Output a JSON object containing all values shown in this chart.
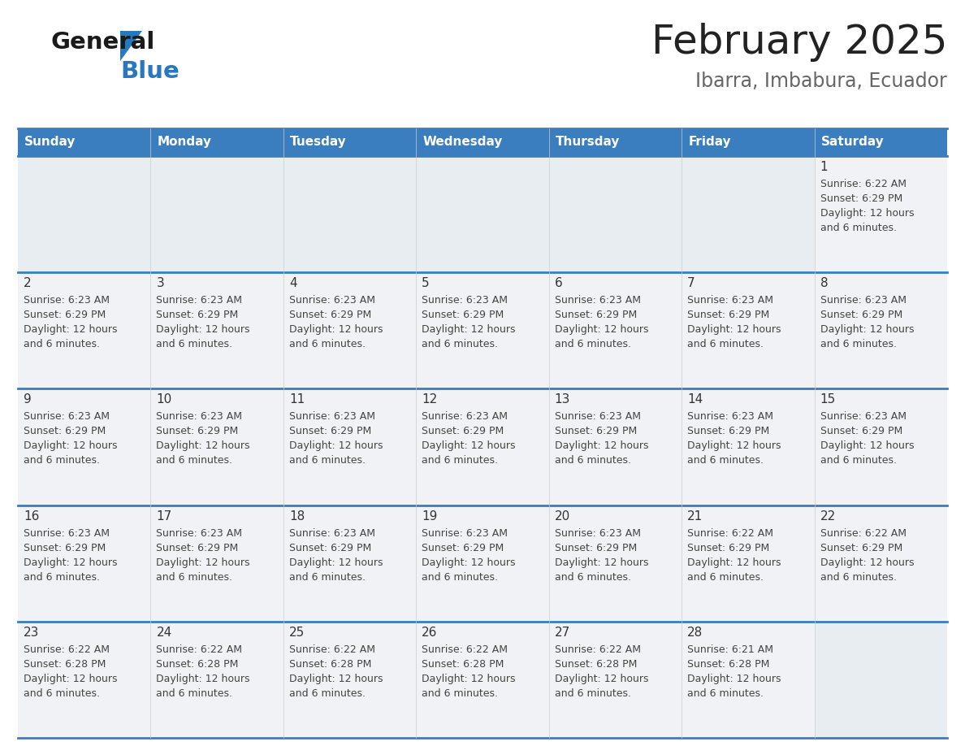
{
  "title": "February 2025",
  "subtitle": "Ibarra, Imbabura, Ecuador",
  "days_of_week": [
    "Sunday",
    "Monday",
    "Tuesday",
    "Wednesday",
    "Thursday",
    "Friday",
    "Saturday"
  ],
  "header_bg": "#3a7ebf",
  "header_text": "#ffffff",
  "cell_bg": "#f0f2f5",
  "cell_bg_empty": "#e8edf2",
  "border_color": "#3a7ebf",
  "text_color": "#444444",
  "day_num_color": "#333333",
  "title_color": "#222222",
  "subtitle_color": "#666666",
  "calendar": [
    [
      null,
      null,
      null,
      null,
      null,
      null,
      1
    ],
    [
      2,
      3,
      4,
      5,
      6,
      7,
      8
    ],
    [
      9,
      10,
      11,
      12,
      13,
      14,
      15
    ],
    [
      16,
      17,
      18,
      19,
      20,
      21,
      22
    ],
    [
      23,
      24,
      25,
      26,
      27,
      28,
      null
    ]
  ],
  "day_info": {
    "1": {
      "sunrise": "6:22 AM",
      "sunset": "6:29 PM",
      "daylight_l1": "Daylight: 12 hours",
      "daylight_l2": "and 6 minutes."
    },
    "2": {
      "sunrise": "6:23 AM",
      "sunset": "6:29 PM",
      "daylight_l1": "Daylight: 12 hours",
      "daylight_l2": "and 6 minutes."
    },
    "3": {
      "sunrise": "6:23 AM",
      "sunset": "6:29 PM",
      "daylight_l1": "Daylight: 12 hours",
      "daylight_l2": "and 6 minutes."
    },
    "4": {
      "sunrise": "6:23 AM",
      "sunset": "6:29 PM",
      "daylight_l1": "Daylight: 12 hours",
      "daylight_l2": "and 6 minutes."
    },
    "5": {
      "sunrise": "6:23 AM",
      "sunset": "6:29 PM",
      "daylight_l1": "Daylight: 12 hours",
      "daylight_l2": "and 6 minutes."
    },
    "6": {
      "sunrise": "6:23 AM",
      "sunset": "6:29 PM",
      "daylight_l1": "Daylight: 12 hours",
      "daylight_l2": "and 6 minutes."
    },
    "7": {
      "sunrise": "6:23 AM",
      "sunset": "6:29 PM",
      "daylight_l1": "Daylight: 12 hours",
      "daylight_l2": "and 6 minutes."
    },
    "8": {
      "sunrise": "6:23 AM",
      "sunset": "6:29 PM",
      "daylight_l1": "Daylight: 12 hours",
      "daylight_l2": "and 6 minutes."
    },
    "9": {
      "sunrise": "6:23 AM",
      "sunset": "6:29 PM",
      "daylight_l1": "Daylight: 12 hours",
      "daylight_l2": "and 6 minutes."
    },
    "10": {
      "sunrise": "6:23 AM",
      "sunset": "6:29 PM",
      "daylight_l1": "Daylight: 12 hours",
      "daylight_l2": "and 6 minutes."
    },
    "11": {
      "sunrise": "6:23 AM",
      "sunset": "6:29 PM",
      "daylight_l1": "Daylight: 12 hours",
      "daylight_l2": "and 6 minutes."
    },
    "12": {
      "sunrise": "6:23 AM",
      "sunset": "6:29 PM",
      "daylight_l1": "Daylight: 12 hours",
      "daylight_l2": "and 6 minutes."
    },
    "13": {
      "sunrise": "6:23 AM",
      "sunset": "6:29 PM",
      "daylight_l1": "Daylight: 12 hours",
      "daylight_l2": "and 6 minutes."
    },
    "14": {
      "sunrise": "6:23 AM",
      "sunset": "6:29 PM",
      "daylight_l1": "Daylight: 12 hours",
      "daylight_l2": "and 6 minutes."
    },
    "15": {
      "sunrise": "6:23 AM",
      "sunset": "6:29 PM",
      "daylight_l1": "Daylight: 12 hours",
      "daylight_l2": "and 6 minutes."
    },
    "16": {
      "sunrise": "6:23 AM",
      "sunset": "6:29 PM",
      "daylight_l1": "Daylight: 12 hours",
      "daylight_l2": "and 6 minutes."
    },
    "17": {
      "sunrise": "6:23 AM",
      "sunset": "6:29 PM",
      "daylight_l1": "Daylight: 12 hours",
      "daylight_l2": "and 6 minutes."
    },
    "18": {
      "sunrise": "6:23 AM",
      "sunset": "6:29 PM",
      "daylight_l1": "Daylight: 12 hours",
      "daylight_l2": "and 6 minutes."
    },
    "19": {
      "sunrise": "6:23 AM",
      "sunset": "6:29 PM",
      "daylight_l1": "Daylight: 12 hours",
      "daylight_l2": "and 6 minutes."
    },
    "20": {
      "sunrise": "6:23 AM",
      "sunset": "6:29 PM",
      "daylight_l1": "Daylight: 12 hours",
      "daylight_l2": "and 6 minutes."
    },
    "21": {
      "sunrise": "6:22 AM",
      "sunset": "6:29 PM",
      "daylight_l1": "Daylight: 12 hours",
      "daylight_l2": "and 6 minutes."
    },
    "22": {
      "sunrise": "6:22 AM",
      "sunset": "6:29 PM",
      "daylight_l1": "Daylight: 12 hours",
      "daylight_l2": "and 6 minutes."
    },
    "23": {
      "sunrise": "6:22 AM",
      "sunset": "6:28 PM",
      "daylight_l1": "Daylight: 12 hours",
      "daylight_l2": "and 6 minutes."
    },
    "24": {
      "sunrise": "6:22 AM",
      "sunset": "6:28 PM",
      "daylight_l1": "Daylight: 12 hours",
      "daylight_l2": "and 6 minutes."
    },
    "25": {
      "sunrise": "6:22 AM",
      "sunset": "6:28 PM",
      "daylight_l1": "Daylight: 12 hours",
      "daylight_l2": "and 6 minutes."
    },
    "26": {
      "sunrise": "6:22 AM",
      "sunset": "6:28 PM",
      "daylight_l1": "Daylight: 12 hours",
      "daylight_l2": "and 6 minutes."
    },
    "27": {
      "sunrise": "6:22 AM",
      "sunset": "6:28 PM",
      "daylight_l1": "Daylight: 12 hours",
      "daylight_l2": "and 6 minutes."
    },
    "28": {
      "sunrise": "6:21 AM",
      "sunset": "6:28 PM",
      "daylight_l1": "Daylight: 12 hours",
      "daylight_l2": "and 6 minutes."
    }
  }
}
